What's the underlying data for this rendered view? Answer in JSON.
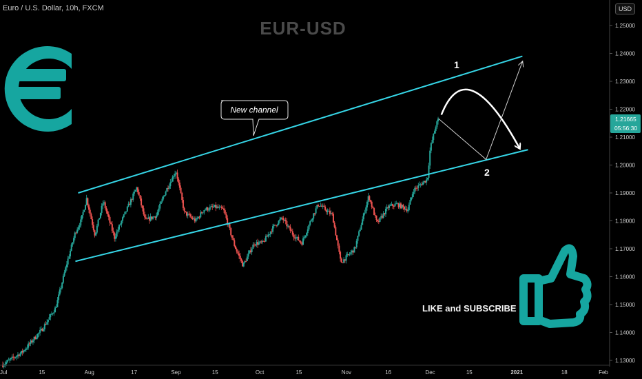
{
  "header": {
    "symbol_line": "Euro / U.S. Dollar, 10h, FXCM",
    "watermark": "EUR-USD",
    "currency_button": "USD"
  },
  "annotations": {
    "callout": "New channel",
    "label_1": "1",
    "label_2": "2",
    "cta": "LIKE and SUBSCRIBE"
  },
  "colors": {
    "background": "#000000",
    "up_candle": "#26a69a",
    "down_candle": "#ef5350",
    "channel_line": "#36d6e7",
    "logo": "#16a6a0",
    "price_badge": "#26a69a"
  },
  "icons": [
    "euro-sign-logo",
    "thumbs-up-icon"
  ],
  "chart_data": {
    "type": "candlestick",
    "instrument": "EUR/USD",
    "timeframe": "10h",
    "x_ticks": [
      "Jul",
      "15",
      "Aug",
      "17",
      "Sep",
      "15",
      "Oct",
      "15",
      "Nov",
      "16",
      "Dec",
      "15",
      "2021",
      "18",
      "Feb"
    ],
    "y_ticks": [
      "1.25000",
      "1.24000",
      "1.23000",
      "1.22000",
      "1.21000",
      "1.20000",
      "1.19000",
      "1.18000",
      "1.17000",
      "1.16000",
      "1.15000",
      "1.14000",
      "1.13000"
    ],
    "ylim": [
      1.13,
      1.255
    ],
    "last_price": "1.21665",
    "countdown": "05:56:30",
    "price_path": [
      [
        "2020-07-01",
        1.1285
      ],
      [
        "2020-07-08",
        1.133
      ],
      [
        "2020-07-15",
        1.141
      ],
      [
        "2020-07-20",
        1.149
      ],
      [
        "2020-07-24",
        1.165
      ],
      [
        "2020-07-27",
        1.176
      ],
      [
        "2020-07-29",
        1.18
      ],
      [
        "2020-07-31",
        1.188
      ],
      [
        "2020-08-03",
        1.175
      ],
      [
        "2020-08-06",
        1.187
      ],
      [
        "2020-08-10",
        1.174
      ],
      [
        "2020-08-13",
        1.181
      ],
      [
        "2020-08-18",
        1.192
      ],
      [
        "2020-08-21",
        1.18
      ],
      [
        "2020-08-25",
        1.182
      ],
      [
        "2020-08-28",
        1.19
      ],
      [
        "2020-09-01",
        1.198
      ],
      [
        "2020-09-04",
        1.183
      ],
      [
        "2020-09-08",
        1.18
      ],
      [
        "2020-09-11",
        1.184
      ],
      [
        "2020-09-15",
        1.185
      ],
      [
        "2020-09-18",
        1.184
      ],
      [
        "2020-09-22",
        1.171
      ],
      [
        "2020-09-25",
        1.164
      ],
      [
        "2020-09-29",
        1.172
      ],
      [
        "2020-10-02",
        1.172
      ],
      [
        "2020-10-06",
        1.178
      ],
      [
        "2020-10-09",
        1.181
      ],
      [
        "2020-10-13",
        1.175
      ],
      [
        "2020-10-16",
        1.172
      ],
      [
        "2020-10-20",
        1.182
      ],
      [
        "2020-10-22",
        1.186
      ],
      [
        "2020-10-27",
        1.182
      ],
      [
        "2020-10-30",
        1.165
      ],
      [
        "2020-11-04",
        1.17
      ],
      [
        "2020-11-09",
        1.189
      ],
      [
        "2020-11-12",
        1.179
      ],
      [
        "2020-11-16",
        1.185
      ],
      [
        "2020-11-19",
        1.186
      ],
      [
        "2020-11-23",
        1.184
      ],
      [
        "2020-11-25",
        1.191
      ],
      [
        "2020-11-30",
        1.195
      ],
      [
        "2020-12-01",
        1.206
      ],
      [
        "2020-12-03",
        1.214
      ],
      [
        "2020-12-04",
        1.2166
      ]
    ],
    "drawings": {
      "channel_upper": [
        [
          "2020-07-28",
          1.19
        ],
        [
          "2021-01-03",
          1.239
        ]
      ],
      "channel_lower": [
        [
          "2020-07-27",
          1.1655
        ],
        [
          "2021-01-05",
          1.2055
        ]
      ],
      "curved_projection_arrow": [
        [
          "2020-12-05",
          1.218
        ],
        [
          "2020-12-14",
          1.231
        ],
        [
          "2021-01-02",
          1.206
        ]
      ],
      "zigzag_projection": [
        [
          "2020-12-04",
          1.2166
        ],
        [
          "2020-12-21",
          1.202
        ],
        [
          "2021-01-03",
          1.237
        ]
      ]
    }
  }
}
